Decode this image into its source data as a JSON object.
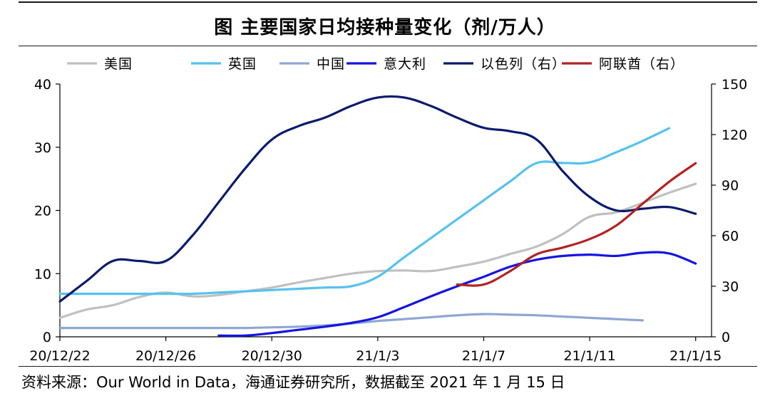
{
  "title": "图  主要国家日均接种量变化（剂/万人）",
  "source": "资料来源：Our World in Data，海通证券研究所，数据截至 2021 年 1 月 15 日",
  "chart_data": {
    "type": "line",
    "x_ticks": [
      "20/12/22",
      "20/12/26",
      "20/12/30",
      "21/1/3",
      "21/1/7",
      "21/1/11",
      "21/1/15"
    ],
    "y_left": {
      "ticks": [
        0,
        10,
        20,
        30,
        40
      ],
      "ylim": [
        0,
        40
      ]
    },
    "y_right": {
      "ticks": [
        0,
        30,
        60,
        90,
        120,
        150
      ],
      "ylim": [
        0,
        150
      ]
    },
    "legend_position": "top",
    "series": [
      {
        "name": "美国",
        "axis": "left",
        "color": "#c0c0c0",
        "points": [
          [
            "20/12/22",
            3.0
          ],
          [
            "20/12/23",
            4.3
          ],
          [
            "20/12/24",
            5.0
          ],
          [
            "20/12/25",
            6.3
          ],
          [
            "20/12/26",
            7.0
          ],
          [
            "20/12/27",
            6.4
          ],
          [
            "20/12/28",
            6.6
          ],
          [
            "20/12/29",
            7.2
          ],
          [
            "20/12/30",
            7.8
          ],
          [
            "20/12/31",
            8.6
          ],
          [
            "21/1/1",
            9.3
          ],
          [
            "21/1/2",
            10.0
          ],
          [
            "21/1/3",
            10.4
          ],
          [
            "21/1/4",
            10.5
          ],
          [
            "21/1/5",
            10.4
          ],
          [
            "21/1/6",
            11.1
          ],
          [
            "21/1/7",
            11.9
          ],
          [
            "21/1/8",
            13.1
          ],
          [
            "21/1/9",
            14.3
          ],
          [
            "21/1/10",
            16.3
          ],
          [
            "21/1/11",
            19.0
          ],
          [
            "21/1/12",
            19.7
          ],
          [
            "21/1/13",
            21.2
          ],
          [
            "21/1/14",
            22.8
          ],
          [
            "21/1/15",
            24.2
          ]
        ]
      },
      {
        "name": "英国",
        "axis": "left",
        "color": "#56c1ee",
        "points": [
          [
            "20/12/22",
            6.8
          ],
          [
            "20/12/23",
            6.8
          ],
          [
            "20/12/24",
            6.8
          ],
          [
            "20/12/25",
            6.8
          ],
          [
            "20/12/26",
            6.8
          ],
          [
            "20/12/27",
            6.8
          ],
          [
            "20/12/28",
            7.0
          ],
          [
            "20/12/29",
            7.2
          ],
          [
            "20/12/30",
            7.4
          ],
          [
            "20/12/31",
            7.6
          ],
          [
            "21/1/1",
            7.8
          ],
          [
            "21/1/2",
            8.0
          ],
          [
            "21/1/3",
            9.5
          ],
          [
            "21/1/4",
            12.6
          ],
          [
            "21/1/5",
            15.6
          ],
          [
            "21/1/6",
            18.6
          ],
          [
            "21/1/7",
            21.6
          ],
          [
            "21/1/8",
            24.6
          ],
          [
            "21/1/9",
            27.5
          ],
          [
            "21/1/10",
            27.5
          ],
          [
            "21/1/11",
            27.6
          ],
          [
            "21/1/12",
            29.2
          ],
          [
            "21/1/13",
            31.0
          ],
          [
            "21/1/14",
            33.0
          ]
        ]
      },
      {
        "name": "中国",
        "axis": "left",
        "color": "#8fa6d4",
        "points": [
          [
            "20/12/22",
            1.4
          ],
          [
            "20/12/23",
            1.4
          ],
          [
            "20/12/24",
            1.4
          ],
          [
            "20/12/25",
            1.4
          ],
          [
            "20/12/26",
            1.4
          ],
          [
            "20/12/27",
            1.4
          ],
          [
            "20/12/28",
            1.4
          ],
          [
            "20/12/29",
            1.4
          ],
          [
            "20/12/30",
            1.5
          ],
          [
            "20/12/31",
            1.6
          ],
          [
            "21/1/1",
            1.8
          ],
          [
            "21/1/2",
            2.1
          ],
          [
            "21/1/3",
            2.5
          ],
          [
            "21/1/4",
            2.8
          ],
          [
            "21/1/5",
            3.1
          ],
          [
            "21/1/6",
            3.4
          ],
          [
            "21/1/7",
            3.6
          ],
          [
            "21/1/8",
            3.5
          ],
          [
            "21/1/9",
            3.4
          ],
          [
            "21/1/10",
            3.2
          ],
          [
            "21/1/11",
            3.0
          ],
          [
            "21/1/12",
            2.8
          ],
          [
            "21/1/13",
            2.6
          ]
        ]
      },
      {
        "name": "意大利",
        "axis": "left",
        "color": "#1414e0",
        "points": [
          [
            "20/12/28",
            0.2
          ],
          [
            "20/12/29",
            0.2
          ],
          [
            "20/12/30",
            0.6
          ],
          [
            "20/12/31",
            1.1
          ],
          [
            "21/1/1",
            1.6
          ],
          [
            "21/1/2",
            2.2
          ],
          [
            "21/1/3",
            3.1
          ],
          [
            "21/1/4",
            4.7
          ],
          [
            "21/1/5",
            6.4
          ],
          [
            "21/1/6",
            8.0
          ],
          [
            "21/1/7",
            9.5
          ],
          [
            "21/1/8",
            11.1
          ],
          [
            "21/1/9",
            12.2
          ],
          [
            "21/1/10",
            12.8
          ],
          [
            "21/1/11",
            13.0
          ],
          [
            "21/1/12",
            12.8
          ],
          [
            "21/1/13",
            13.3
          ],
          [
            "21/1/14",
            13.2
          ],
          [
            "21/1/15",
            11.6
          ]
        ]
      },
      {
        "name": "以色列（右）",
        "axis": "right",
        "color": "#0a1a6e",
        "points": [
          [
            "20/12/22",
            21
          ],
          [
            "20/12/23",
            33
          ],
          [
            "20/12/24",
            45
          ],
          [
            "20/12/25",
            45
          ],
          [
            "20/12/26",
            45
          ],
          [
            "20/12/27",
            60
          ],
          [
            "20/12/28",
            80
          ],
          [
            "20/12/29",
            100
          ],
          [
            "20/12/30",
            117
          ],
          [
            "20/12/31",
            125
          ],
          [
            "21/1/1",
            130
          ],
          [
            "21/1/2",
            137
          ],
          [
            "21/1/3",
            142
          ],
          [
            "21/1/4",
            142
          ],
          [
            "21/1/5",
            137
          ],
          [
            "21/1/6",
            130
          ],
          [
            "21/1/7",
            124
          ],
          [
            "21/1/8",
            122
          ],
          [
            "21/1/9",
            117
          ],
          [
            "21/1/10",
            98
          ],
          [
            "21/1/11",
            83
          ],
          [
            "21/1/12",
            75
          ],
          [
            "21/1/13",
            76
          ],
          [
            "21/1/14",
            77
          ],
          [
            "21/1/15",
            73
          ]
        ]
      },
      {
        "name": "阿联酋（右）",
        "axis": "right",
        "color": "#b22222",
        "points": [
          [
            "21/1/6",
            31
          ],
          [
            "21/1/7",
            31
          ],
          [
            "21/1/8",
            39
          ],
          [
            "21/1/9",
            49
          ],
          [
            "21/1/10",
            53
          ],
          [
            "21/1/11",
            58
          ],
          [
            "21/1/12",
            66
          ],
          [
            "21/1/13",
            79
          ],
          [
            "21/1/14",
            92
          ],
          [
            "21/1/15",
            103
          ]
        ]
      }
    ]
  }
}
